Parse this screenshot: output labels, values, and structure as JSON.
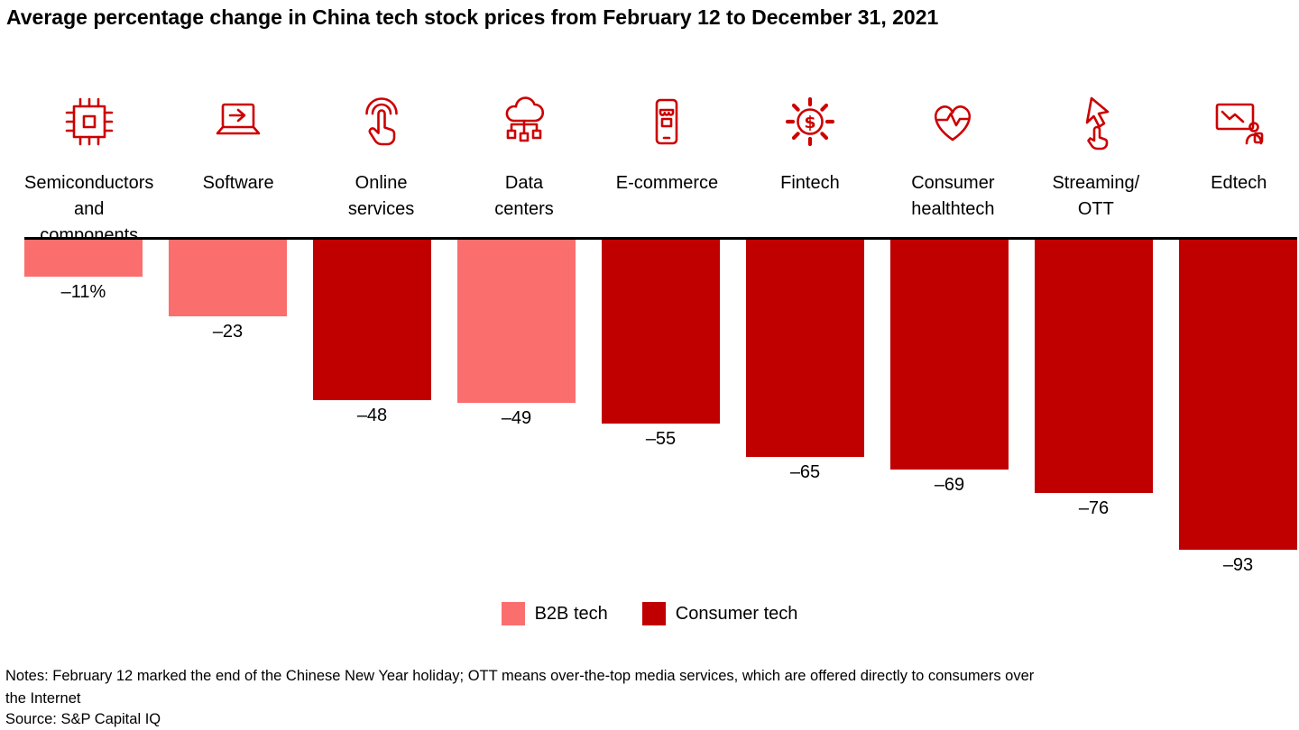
{
  "chart_data": {
    "type": "bar",
    "title": "Average percentage change in China tech stock prices from February 12 to December 31, 2021",
    "unit": "percent",
    "ylim": [
      -100,
      0
    ],
    "baseline_value": 0,
    "categories": [
      [
        "Semiconductors",
        "and components"
      ],
      [
        "Software"
      ],
      [
        "Online",
        "services"
      ],
      [
        "Data",
        "centers"
      ],
      [
        "E-commerce"
      ],
      [
        "Fintech"
      ],
      [
        "Consumer",
        "healthtech"
      ],
      [
        "Streaming/",
        "OTT"
      ],
      [
        "Edtech"
      ]
    ],
    "values": [
      -11,
      -23,
      -48,
      -49,
      -55,
      -65,
      -69,
      -76,
      -93
    ],
    "value_labels": [
      "–11%",
      "–23",
      "–48",
      "–49",
      "–55",
      "–65",
      "–69",
      "–76",
      "–93"
    ],
    "groups": [
      "b2b",
      "b2b",
      "consumer",
      "b2b",
      "consumer",
      "consumer",
      "consumer",
      "consumer",
      "consumer"
    ],
    "colors": {
      "b2b": "#FB6E6E",
      "consumer": "#C00000"
    },
    "icon_color": "#CC0000",
    "icons": [
      "semiconductor-chip-icon",
      "software-laptop-icon",
      "online-services-tap-icon",
      "data-center-cloud-icon",
      "ecommerce-storefront-icon",
      "fintech-gear-dollar-icon",
      "consumer-healthtech-heart-icon",
      "streaming-ott-cursor-icon",
      "edtech-screen-icon"
    ],
    "legend": [
      {
        "label": "B2B tech",
        "color": "#FB6E6E",
        "group": "b2b"
      },
      {
        "label": "Consumer tech",
        "color": "#C00000",
        "group": "consumer"
      }
    ]
  },
  "notes": "Notes: February 12 marked the end of the Chinese New Year holiday; OTT means over-the-top media services, which are offered directly to consumers over\nthe Internet",
  "source": "Source: S&P Capital IQ"
}
